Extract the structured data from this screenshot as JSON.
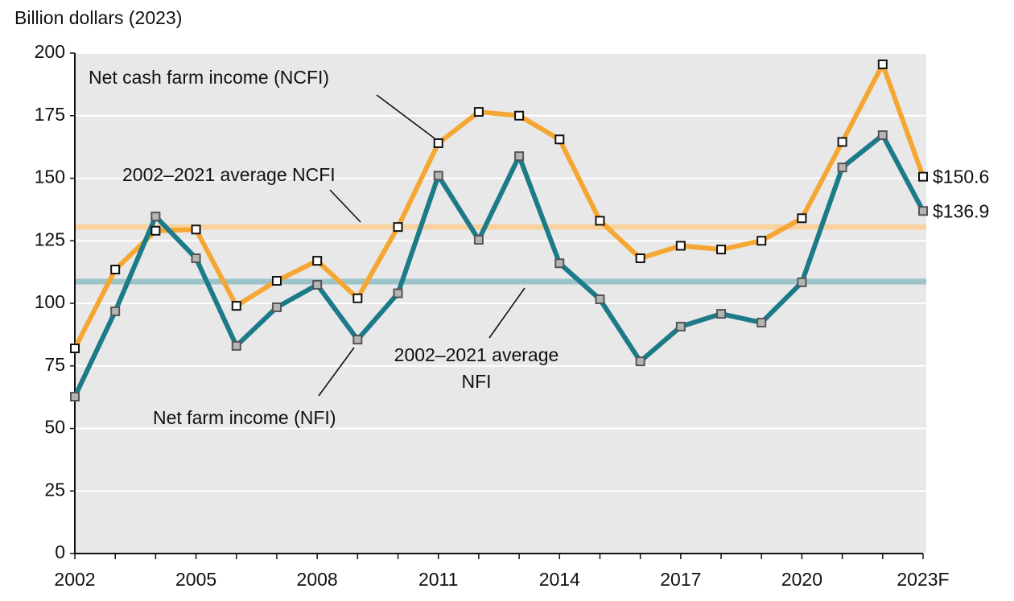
{
  "chart_data": {
    "type": "line",
    "y_axis_label": "Billion dollars (2023)",
    "categories": [
      "2002",
      null,
      null,
      "2005",
      null,
      null,
      "2008",
      null,
      null,
      "2011",
      null,
      null,
      "2014",
      null,
      null,
      "2017",
      null,
      null,
      "2020",
      null,
      null,
      "2023F"
    ],
    "series": [
      {
        "name": "Net cash farm income (NCFI)",
        "color": "#f5a733",
        "values": [
          82,
          113.5,
          129,
          129.5,
          99,
          109,
          117,
          102,
          130.5,
          164,
          176.5,
          175,
          165.5,
          133,
          118,
          123,
          121.5,
          125,
          134,
          164.5,
          195.5,
          150.6
        ],
        "value_labels": [
          null,
          null,
          null,
          null,
          null,
          null,
          null,
          null,
          null,
          null,
          null,
          null,
          null,
          null,
          null,
          null,
          null,
          null,
          null,
          null,
          null,
          "$150.6"
        ]
      },
      {
        "name": "Net farm income (NFI)",
        "color": "#1d7a89",
        "values": [
          62.7,
          96.8,
          134.7,
          118,
          83,
          98.4,
          107.4,
          85.5,
          104,
          151,
          125.4,
          158.8,
          116,
          101.6,
          76.8,
          90.7,
          95.8,
          92.3,
          108.4,
          154.3,
          167.2,
          136.9
        ],
        "value_labels": [
          null,
          null,
          null,
          null,
          null,
          null,
          null,
          null,
          null,
          null,
          null,
          null,
          null,
          null,
          null,
          null,
          null,
          null,
          null,
          null,
          null,
          "$136.9"
        ]
      }
    ],
    "reference_lines": [
      {
        "label": "2002–2021 average NCFI",
        "value": 130.5,
        "color": "#f8d3a0"
      },
      {
        "label": [
          "2002–2021 average",
          "NFI"
        ],
        "value": 108.7,
        "color": "#9cc3c8"
      }
    ],
    "ylim": [
      0,
      200
    ],
    "yticks": [
      0,
      25,
      50,
      75,
      100,
      125,
      150,
      175,
      200
    ],
    "grid": true
  }
}
